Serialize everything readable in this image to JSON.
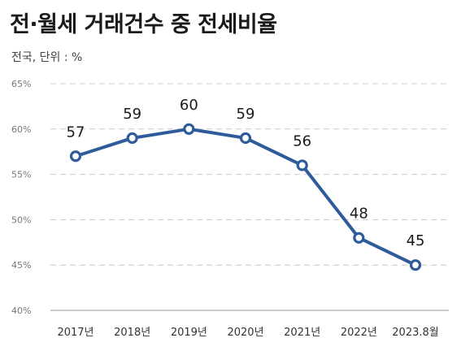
{
  "title": "전·월세 거래건수 중 전세비율",
  "subtitle": "전국, 단위 : %",
  "chart_data": {
    "type": "line",
    "title": "전·월세 거래건수 중 전세비율",
    "subtitle": "전국, 단위 : %",
    "categories": [
      "2017년",
      "2018년",
      "2019년",
      "2020년",
      "2021년",
      "2022년",
      "2023.8월"
    ],
    "series": [
      {
        "values": [
          57,
          59,
          60,
          59,
          56,
          48,
          45
        ]
      }
    ],
    "ylim": [
      40,
      65
    ],
    "yticks": [
      40,
      45,
      50,
      55,
      60,
      65
    ],
    "ytick_labels": [
      "40%",
      "45%",
      "50%",
      "55%",
      "60%",
      "65%"
    ],
    "grid": true,
    "legend": "none",
    "colors": {
      "line": "#2e5c9a",
      "grid": "#cccccc"
    }
  }
}
